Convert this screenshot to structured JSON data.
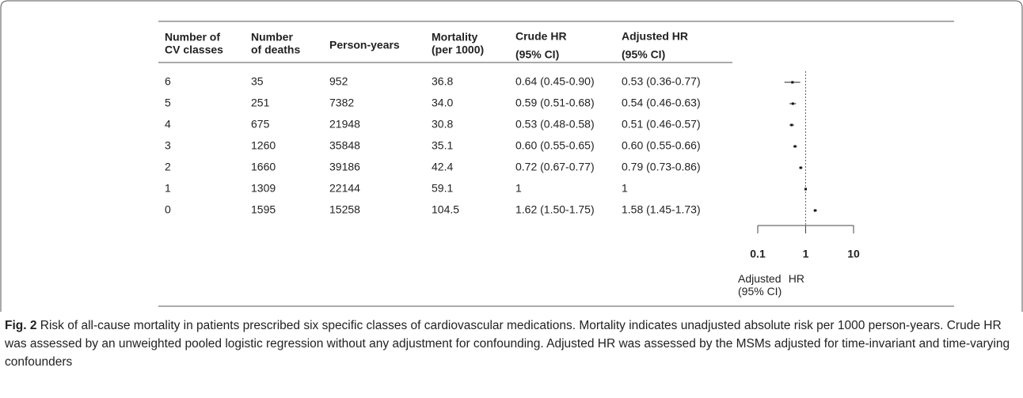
{
  "table": {
    "headers": [
      [
        "Number of",
        "CV classes"
      ],
      [
        "Number",
        "of deaths"
      ],
      [
        "Person-years"
      ],
      [
        "Mortality",
        "(per 1000)"
      ],
      [
        "Crude HR",
        "(95% CI)"
      ],
      [
        "Adjusted HR",
        "(95% CI)"
      ]
    ],
    "rows": [
      [
        "6",
        "35",
        "952",
        "36.8",
        "0.64 (0.45-0.90)",
        "0.53 (0.36-0.77)"
      ],
      [
        "5",
        "251",
        "7382",
        "34.0",
        "0.59 (0.51-0.68)",
        "0.54 (0.46-0.63)"
      ],
      [
        "4",
        "675",
        "21948",
        "30.8",
        "0.53 (0.48-0.58)",
        "0.51 (0.46-0.57)"
      ],
      [
        "3",
        "1260",
        "35848",
        "35.1",
        "0.60 (0.55-0.65)",
        "0.60 (0.55-0.66)"
      ],
      [
        "2",
        "1660",
        "39186",
        "42.4",
        "0.72 (0.67-0.77)",
        "0.79 (0.73-0.86)"
      ],
      [
        "1",
        "1309",
        "22144",
        "59.1",
        "1",
        "1"
      ],
      [
        "0",
        "1595",
        "15258",
        "104.5",
        "1.62 (1.50-1.75)",
        "1.58 (1.45-1.73)"
      ]
    ]
  },
  "forest_plot": {
    "type": "forest",
    "log_scale": true,
    "xlim": [
      0.1,
      10
    ],
    "xticks": [
      0.1,
      1,
      10
    ],
    "reference": 1,
    "xlabel": "Adjusted HR (95% CI)",
    "estimates": [
      0.53,
      0.54,
      0.51,
      0.6,
      0.79,
      1,
      1.58
    ],
    "lower": [
      0.36,
      0.46,
      0.46,
      0.55,
      0.73,
      1,
      1.45
    ],
    "upper": [
      0.77,
      0.63,
      0.57,
      0.66,
      0.86,
      1,
      1.73
    ]
  },
  "caption": {
    "label": "Fig. 2",
    "text": "Risk of all-cause mortality in patients prescribed six specific classes of cardiovascular medications. Mortality indicates unadjusted absolute risk per 1000 person-years. Crude HR was assessed by an unweighted pooled logistic regression without any adjustment for confounding. Adjusted HR was assessed by the MSMs adjusted for time-invariant and time-varying confounders"
  }
}
